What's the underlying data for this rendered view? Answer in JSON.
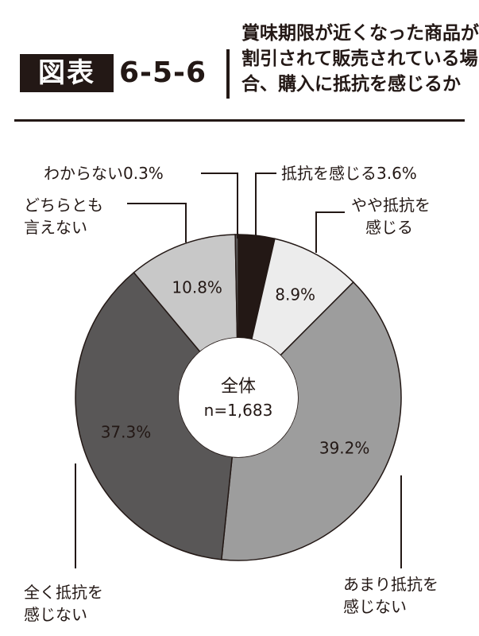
{
  "header": {
    "badge": "図表",
    "figure_number": "6-5-6",
    "title_lines": [
      "賞味期限が近くなった商品が",
      "割引されて販売されている場",
      "合、購入に抵抗を感じるか"
    ]
  },
  "chart_data": {
    "type": "pie",
    "donut": true,
    "center_label": "全体",
    "sample_size": "n=1,683",
    "slices": [
      {
        "label": "抵抗を感じる",
        "value": 3.6,
        "value_label": "3.6%",
        "color": "#231815"
      },
      {
        "label": "やや抵抗を感じる",
        "value": 8.9,
        "value_label": "8.9%",
        "color": "#ececec"
      },
      {
        "label": "あまり抵抗を感じない",
        "value": 39.2,
        "value_label": "39.2%",
        "color": "#9d9d9d"
      },
      {
        "label": "全く抵抗を感じない",
        "value": 37.3,
        "value_label": "37.3%",
        "color": "#595757"
      },
      {
        "label": "どちらとも言えない",
        "value": 10.8,
        "value_label": "10.8%",
        "color": "#c8c8c8"
      },
      {
        "label": "わからない",
        "value": 0.3,
        "value_label": "0.3%",
        "color": "#595757"
      }
    ]
  },
  "callouts": {
    "s0": [
      "抵抗を感じる3.6%"
    ],
    "s1": [
      "やや抵抗を",
      "感じる"
    ],
    "s2": [
      "あまり抵抗を",
      "感じない"
    ],
    "s3": [
      "全く抵抗を",
      "感じない"
    ],
    "s4": [
      "どちらとも",
      "言えない"
    ],
    "s5": [
      "わからない0.3%"
    ]
  }
}
